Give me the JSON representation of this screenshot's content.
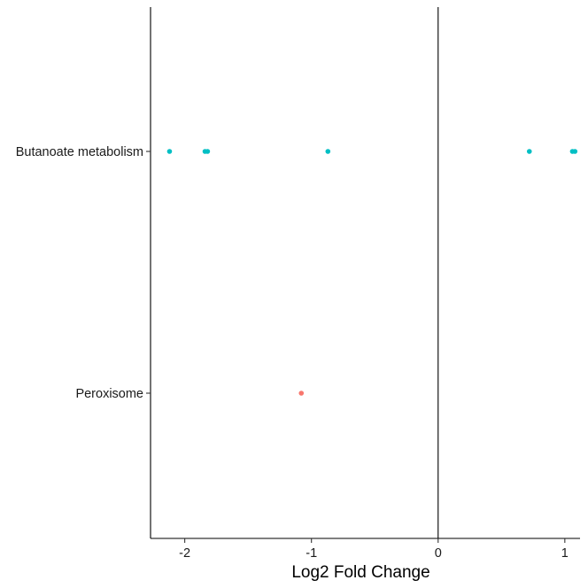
{
  "chart_data": {
    "type": "scatter",
    "title": "",
    "xlabel": "Log2 Fold Change",
    "ylabel": "",
    "xlim": [
      -2.27,
      1.12
    ],
    "x_ticks": [
      {
        "value": -2,
        "label": "-2"
      },
      {
        "value": -1,
        "label": "-1"
      },
      {
        "value": 0,
        "label": "0"
      },
      {
        "value": 1,
        "label": "1"
      }
    ],
    "categories": [
      "Butanoate metabolism",
      "Peroxisome"
    ],
    "reference_line_x": 0,
    "grid": false,
    "legend": "none",
    "series": [
      {
        "category": "Butanoate metabolism",
        "color": "#00BFC4",
        "x": [
          -2.12,
          -1.84,
          -1.82,
          -0.87,
          0.72,
          1.06,
          1.08
        ]
      },
      {
        "category": "Peroxisome",
        "color": "#F8766D",
        "x": [
          -1.08
        ]
      }
    ]
  }
}
